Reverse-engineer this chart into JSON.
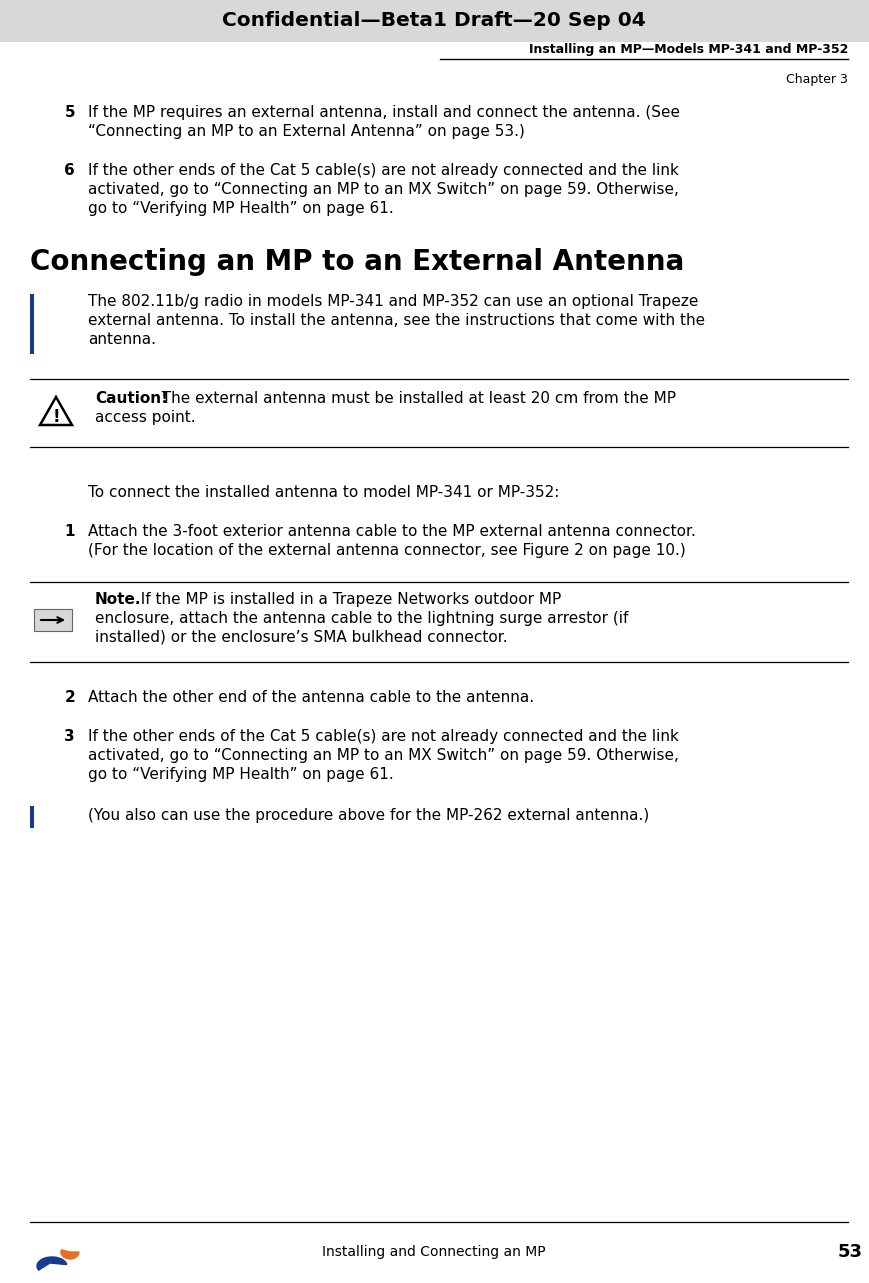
{
  "header_bg": "#d8d8d8",
  "header_text": "Confidential—Beta1 Draft—20 Sep 04",
  "subheader_right": "Installing an MP—Models MP-341 and MP-352",
  "chapter_right": "Chapter 3",
  "footer_text": "Installing and Connecting an MP",
  "footer_page": "53",
  "page_bg": "#ffffff",
  "accent_bar_color": "#1a3a8c",
  "step5_num": "5",
  "step5_line1": "If the MP requires an external antenna, install and connect the antenna. (See",
  "step5_line2": "“Connecting an MP to an External Antenna” on page 53.)",
  "step6_num": "6",
  "step6_line1": "If the other ends of the Cat 5 cable(s) are not already connected and the link",
  "step6_line2": "activated, go to “Connecting an MP to an MX Switch” on page 59. Otherwise,",
  "step6_line3": "go to “Verifying MP Health” on page 61.",
  "section_title": "Connecting an MP to an External Antenna",
  "intro_line1": "The 802.11b/g radio in models MP-341 and MP-352 can use an optional Trapeze",
  "intro_line2": "external antenna. To install the antenna, see the instructions that come with the",
  "intro_line3": "antenna.",
  "caution_bold": "Caution!",
  "caution_line1": "  The external antenna must be installed at least 20 cm from the MP",
  "caution_line2": "access point.",
  "connect_intro": "To connect the installed antenna to model MP-341 or MP-352:",
  "step1_num": "1",
  "step1_line1": "Attach the 3-foot exterior antenna cable to the MP external antenna connector.",
  "step1_line2": "(For the location of the external antenna connector, see Figure 2 on page 10.)",
  "note_bold": "Note.",
  "note_line1": "  If the MP is installed in a Trapeze Networks outdoor MP",
  "note_line2": "enclosure, attach the antenna cable to the lightning surge arrestor (if",
  "note_line3": "installed) or the enclosure’s SMA bulkhead connector.",
  "step2_num": "2",
  "step2_text": "Attach the other end of the antenna cable to the antenna.",
  "step3_num": "3",
  "step3_line1": "If the other ends of the Cat 5 cable(s) are not already connected and the link",
  "step3_line2": "activated, go to “Connecting an MP to an MX Switch” on page 59. Otherwise,",
  "step3_line3": "go to “Verifying MP Health” on page 61.",
  "final_note": "(You also can use the procedure above for the MP-262 external antenna.)"
}
